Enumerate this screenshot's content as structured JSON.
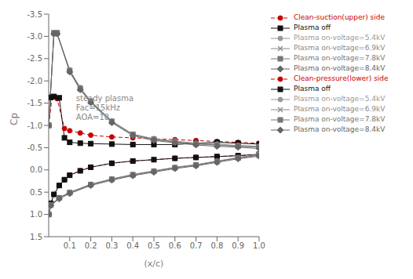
{
  "chart_data": {
    "type": "line",
    "xlabel": "(x/c)",
    "ylabel": "Cp",
    "xlim": [
      0,
      1
    ],
    "ylim": [
      1.5,
      -3.5
    ],
    "xticks": [
      0.1,
      0.2,
      0.3,
      0.4,
      0.5,
      0.6,
      0.7,
      0.8,
      0.9,
      {
        "value": 1.0,
        "label": "1.0"
      }
    ],
    "yticks": [
      -3.5,
      {
        "value": -3.0,
        "label": "-3.0"
      },
      -2.5,
      {
        "value": -2.0,
        "label": "-2.0"
      },
      -1.5,
      {
        "value": -1.0,
        "label": "-1.0"
      },
      -0.5,
      {
        "value": 0.0,
        "label": "0.0"
      },
      0.5,
      {
        "value": 1.0,
        "label": "1.0"
      },
      1.5
    ],
    "legend": "right",
    "annotations": [
      {
        "text": "steady plasma\nFac=15kHz\nAOA=18",
        "x": 0.13,
        "y": -1.7
      }
    ],
    "series": [
      {
        "name": "Clean-suction(upper) side",
        "color": "#cc0000",
        "marker": "circle",
        "line_style": "dashed",
        "x": [
          0.0,
          0.016,
          0.04,
          0.075,
          0.1,
          0.15,
          0.2,
          0.3,
          0.4,
          0.5,
          0.6,
          0.7,
          0.8,
          0.9,
          1.0
        ],
        "values": [
          -1.0,
          -1.63,
          -1.6,
          -0.93,
          -0.88,
          -0.83,
          -0.78,
          -0.74,
          -0.72,
          -0.7,
          -0.68,
          -0.66,
          -0.64,
          -0.62,
          -0.6
        ]
      },
      {
        "name": "Plasma off",
        "color": "#111111",
        "marker": "square",
        "line_style": "solid",
        "x": [
          0.0,
          0.01,
          0.025,
          0.05,
          0.075,
          0.1,
          0.15,
          0.2,
          0.3,
          0.4,
          0.5,
          0.6,
          0.7,
          0.8,
          0.9,
          1.0
        ],
        "values": [
          -1.0,
          -1.63,
          -1.65,
          -1.62,
          -0.72,
          -0.62,
          -0.6,
          -0.59,
          -0.58,
          -0.57,
          -0.57,
          -0.57,
          -0.6,
          -0.62,
          -0.6,
          -0.58
        ]
      },
      {
        "name": "Plasma on-voltage=5.4kV",
        "color": "#999999",
        "marker": "circle",
        "line_style": "solid",
        "x": [
          0.0,
          0.025,
          0.04,
          0.1,
          0.15,
          0.2,
          0.3,
          0.4,
          0.5,
          0.6,
          0.7,
          0.8,
          0.9,
          1.0
        ],
        "values": [
          -1.0,
          -3.05,
          -3.05,
          -2.25,
          -1.85,
          -1.55,
          -1.1,
          -0.8,
          -0.7,
          -0.65,
          -0.6,
          -0.58,
          -0.55,
          -0.53
        ]
      },
      {
        "name": "Plasma on-voltage=6.9kV",
        "color": "#888888",
        "marker": "x",
        "line_style": "solid",
        "x": [
          0.0,
          0.025,
          0.04,
          0.1,
          0.15,
          0.2,
          0.3,
          0.4,
          0.5,
          0.6,
          0.7,
          0.8,
          0.9,
          1.0
        ],
        "values": [
          -1.0,
          -3.07,
          -3.07,
          -2.22,
          -1.82,
          -1.53,
          -1.08,
          -0.79,
          -0.68,
          -0.63,
          -0.58,
          -0.56,
          -0.53,
          -0.51
        ]
      },
      {
        "name": "Plasma on-voltage=7.8kV",
        "color": "#777777",
        "marker": "square",
        "line_style": "solid",
        "x": [
          0.0,
          0.025,
          0.04,
          0.1,
          0.15,
          0.2,
          0.3,
          0.4,
          0.5,
          0.6,
          0.7,
          0.8,
          0.9,
          1.0
        ],
        "values": [
          -1.0,
          -3.08,
          -3.08,
          -2.23,
          -1.83,
          -1.54,
          -1.09,
          -0.8,
          -0.69,
          -0.63,
          -0.59,
          -0.56,
          -0.54,
          -0.52
        ]
      },
      {
        "name": "Plasma on-voltage=8.4kV",
        "color": "#666666",
        "marker": "diamond",
        "line_style": "solid",
        "x": [
          0.0,
          0.025,
          0.04,
          0.1,
          0.15,
          0.2,
          0.3,
          0.4,
          0.5,
          0.6,
          0.7,
          0.8,
          0.9,
          1.0
        ],
        "values": [
          -1.0,
          -3.06,
          -3.06,
          -2.2,
          -1.8,
          -1.51,
          -1.06,
          -0.77,
          -0.66,
          -0.61,
          -0.56,
          -0.53,
          -0.51,
          -0.48
        ]
      },
      {
        "name": "Clean-pressure(lower) side",
        "color": "#cc0000",
        "marker": "circle",
        "line_style": "dashed",
        "x": [
          0.0,
          0.01,
          0.025,
          0.05,
          0.075,
          0.1,
          0.15,
          0.2,
          0.3,
          0.4,
          0.5,
          0.6,
          0.7,
          0.8,
          0.9,
          1.0
        ],
        "values": [
          1.0,
          0.75,
          0.55,
          0.35,
          0.22,
          0.12,
          0.02,
          -0.06,
          -0.15,
          -0.2,
          -0.23,
          -0.26,
          -0.28,
          -0.3,
          -0.32,
          -0.35
        ]
      },
      {
        "name": "Plasma off",
        "color": "#111111",
        "marker": "square",
        "line_style": "solid",
        "x": [
          0.0,
          0.01,
          0.025,
          0.05,
          0.075,
          0.1,
          0.15,
          0.2,
          0.3,
          0.4,
          0.5,
          0.6,
          0.7,
          0.8,
          0.9,
          1.0
        ],
        "values": [
          1.0,
          0.75,
          0.55,
          0.35,
          0.22,
          0.12,
          0.02,
          -0.06,
          -0.15,
          -0.2,
          -0.23,
          -0.26,
          -0.28,
          -0.3,
          -0.32,
          -0.35
        ]
      },
      {
        "name": "Plasma on-voltage=5.4kV",
        "color": "#999999",
        "marker": "circle",
        "line_style": "solid",
        "x": [
          0.0,
          0.01,
          0.05,
          0.1,
          0.2,
          0.3,
          0.4,
          0.5,
          0.6,
          0.7,
          0.8,
          0.9,
          1.0
        ],
        "values": [
          1.0,
          0.78,
          0.62,
          0.5,
          0.32,
          0.2,
          0.1,
          0.02,
          -0.06,
          -0.12,
          -0.2,
          -0.28,
          -0.35
        ]
      },
      {
        "name": "Plasma on-voltage=6.9kV",
        "color": "#888888",
        "marker": "x",
        "line_style": "solid",
        "x": [
          0.0,
          0.01,
          0.05,
          0.1,
          0.2,
          0.3,
          0.4,
          0.5,
          0.6,
          0.7,
          0.8,
          0.9,
          1.0
        ],
        "values": [
          1.0,
          0.79,
          0.63,
          0.51,
          0.33,
          0.21,
          0.11,
          0.03,
          -0.05,
          -0.11,
          -0.19,
          -0.27,
          -0.34
        ]
      },
      {
        "name": "Plasma on-voltage=7.8kV",
        "color": "#777777",
        "marker": "square",
        "line_style": "solid",
        "x": [
          0.0,
          0.01,
          0.05,
          0.1,
          0.2,
          0.3,
          0.4,
          0.5,
          0.6,
          0.7,
          0.8,
          0.9,
          1.0
        ],
        "values": [
          1.0,
          0.79,
          0.63,
          0.51,
          0.33,
          0.21,
          0.11,
          0.03,
          -0.05,
          -0.11,
          -0.19,
          -0.27,
          -0.33
        ]
      },
      {
        "name": "Plasma on-voltage=8.4kV",
        "color": "#666666",
        "marker": "diamond",
        "line_style": "solid",
        "x": [
          0.0,
          0.01,
          0.05,
          0.1,
          0.2,
          0.3,
          0.4,
          0.5,
          0.6,
          0.7,
          0.8,
          0.9,
          1.0
        ],
        "values": [
          1.0,
          0.8,
          0.65,
          0.53,
          0.35,
          0.23,
          0.13,
          0.05,
          -0.03,
          -0.09,
          -0.17,
          -0.25,
          -0.31
        ]
      }
    ]
  }
}
